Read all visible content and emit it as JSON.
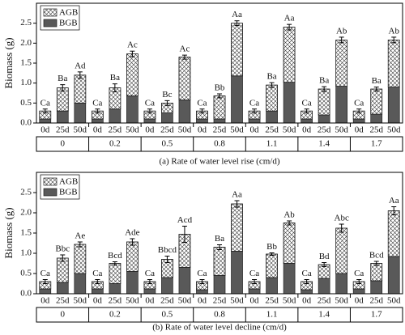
{
  "chart_data": [
    {
      "type": "bar",
      "stacked": true,
      "title": "(a) Rate of water level rise (cm/d)",
      "y_label": "Biomass (g)",
      "categories": [
        "0d",
        "25d",
        "50d",
        "0d",
        "25d",
        "50d",
        "0d",
        "25d",
        "50d",
        "0d",
        "25d",
        "50d",
        "0d",
        "25d",
        "50d",
        "0d",
        "25d",
        "50d",
        "0d",
        "25d",
        "50d"
      ],
      "groups": [
        "0",
        "0.2",
        "0.5",
        "0.8",
        "1.1",
        "1.4",
        "1.7"
      ],
      "series": [
        {
          "name": "BGB",
          "color": "#595959",
          "values": [
            0.1,
            0.3,
            0.5,
            0.1,
            0.35,
            0.68,
            0.1,
            0.25,
            0.58,
            0.1,
            0.1,
            1.18,
            0.1,
            0.3,
            1.02,
            0.1,
            0.2,
            0.92,
            0.1,
            0.22,
            0.9
          ]
        },
        {
          "name": "AGB",
          "color": "#ffffff",
          "values": [
            0.2,
            0.58,
            0.7,
            0.2,
            0.53,
            1.05,
            0.2,
            0.25,
            1.07,
            0.2,
            0.58,
            1.32,
            0.2,
            0.65,
            1.38,
            0.2,
            0.65,
            1.16,
            0.2,
            0.63,
            1.18
          ]
        }
      ],
      "errors": [
        0.05,
        0.08,
        0.08,
        0.05,
        0.1,
        0.07,
        0.05,
        0.06,
        0.05,
        0.05,
        0.05,
        0.06,
        0.05,
        0.06,
        0.07,
        0.05,
        0.06,
        0.07,
        0.05,
        0.05,
        0.07
      ],
      "annotations": [
        "Ca",
        "Ba",
        "Ad",
        "Ca",
        "Ba",
        "Ac",
        "Ca",
        "Bc",
        "Ac",
        "Ca",
        "Bb",
        "Aa",
        "Ca",
        "Ba",
        "Aa",
        "Ca",
        "Ba",
        "Ab",
        "Ca",
        "Ba",
        "Ab"
      ],
      "ylim": [
        0,
        3
      ],
      "yticks": [
        {
          "value": 0,
          "label": "0.0"
        },
        {
          "value": 0.5,
          "label": "0.5"
        },
        {
          "value": 1,
          "label": "1.0"
        },
        {
          "value": 1.5,
          "label": "1.5"
        },
        {
          "value": 2,
          "label": "2.0"
        },
        {
          "value": 2.5,
          "label": "2.5"
        }
      ],
      "legend": "upper left"
    },
    {
      "type": "bar",
      "stacked": true,
      "title": "(b) Rate of water level decline (cm/d)",
      "y_label": "Biomass (g)",
      "categories": [
        "0d",
        "25d",
        "50d",
        "0d",
        "25d",
        "50d",
        "0d",
        "25d",
        "50d",
        "0d",
        "25d",
        "50d",
        "0d",
        "25d",
        "50d",
        "0d",
        "25d",
        "50d",
        "0d",
        "25d",
        "50d"
      ],
      "groups": [
        "0",
        "0.2",
        "0.5",
        "0.8",
        "1.1",
        "1.4",
        "1.7"
      ],
      "series": [
        {
          "name": "BGB",
          "color": "#595959",
          "values": [
            0.12,
            0.28,
            0.5,
            0.12,
            0.25,
            0.55,
            0.12,
            0.4,
            0.65,
            0.1,
            0.45,
            1.05,
            0.12,
            0.4,
            0.75,
            0.1,
            0.38,
            0.5,
            0.12,
            0.32,
            0.92
          ]
        },
        {
          "name": "AGB",
          "color": "#ffffff",
          "values": [
            0.18,
            0.6,
            0.72,
            0.18,
            0.5,
            0.73,
            0.18,
            0.45,
            0.82,
            0.2,
            0.7,
            1.17,
            0.18,
            0.58,
            1.0,
            0.2,
            0.34,
            1.12,
            0.18,
            0.43,
            1.13
          ]
        }
      ],
      "errors": [
        0.05,
        0.08,
        0.06,
        0.05,
        0.04,
        0.08,
        0.05,
        0.08,
        0.2,
        0.05,
        0.06,
        0.08,
        0.05,
        0.03,
        0.05,
        0.05,
        0.05,
        0.1,
        0.05,
        0.05,
        0.1
      ],
      "annotations": [
        "Ca",
        "Bbc",
        "Ae",
        "Ca",
        "Bcd",
        "Ade",
        "Ca",
        "Bbcd",
        "Acd",
        "Ca",
        "Ba",
        "Aa",
        "Ca",
        "Bb",
        "Ab",
        "Ca",
        "Bd",
        "Abc",
        "Ca",
        "Bcd",
        "Aa"
      ],
      "ylim": [
        0,
        3
      ],
      "yticks": [
        {
          "value": 0,
          "label": "0.0"
        },
        {
          "value": 0.5,
          "label": "0.5"
        },
        {
          "value": 1,
          "label": "1.0"
        },
        {
          "value": 1.5,
          "label": "1.5"
        },
        {
          "value": 2,
          "label": "2.0"
        },
        {
          "value": 2.5,
          "label": "2.5"
        }
      ],
      "legend": "upper left"
    }
  ]
}
